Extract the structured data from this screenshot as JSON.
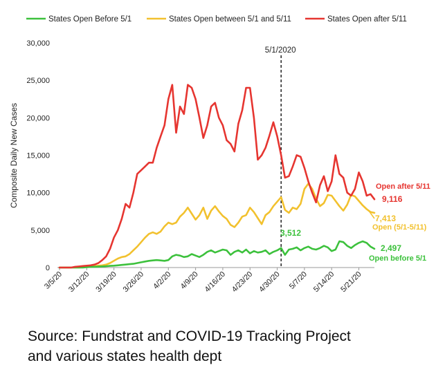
{
  "chart_data": {
    "type": "line",
    "title": "",
    "xlabel": "",
    "ylabel": "Composite Daily New Cases",
    "ylim": [
      0,
      30000
    ],
    "yticks": [
      0,
      5000,
      10000,
      15000,
      20000,
      25000,
      30000
    ],
    "ytick_labels": [
      "0",
      "5,000",
      "10,000",
      "15,000",
      "20,000",
      "25,000",
      "30,000"
    ],
    "xticks_day_index": [
      0,
      7,
      14,
      21,
      28,
      35,
      42,
      49,
      56,
      63,
      70,
      77
    ],
    "xtick_labels": [
      "3/5/20",
      "3/12/20",
      "3/19/20",
      "3/26/20",
      "4/2/20",
      "4/9/20",
      "4/16/20",
      "4/23/20",
      "4/30/20",
      "5/7/20",
      "5/14/20",
      "5/21/20"
    ],
    "x_start_date": "3/5/20",
    "x_num_days": 82,
    "marker": {
      "day_index": 57,
      "label": "5/1/2020"
    },
    "legend": {
      "position": "top"
    },
    "series": [
      {
        "name": "States Open Before 5/1",
        "color": "#3cc13c",
        "values": [
          0,
          0,
          0,
          0,
          0,
          0,
          0,
          50,
          80,
          100,
          120,
          150,
          180,
          220,
          250,
          300,
          350,
          400,
          450,
          500,
          600,
          700,
          800,
          900,
          950,
          1000,
          950,
          900,
          1000,
          1500,
          1700,
          1600,
          1400,
          1500,
          1800,
          1600,
          1400,
          1700,
          2100,
          2300,
          2000,
          2200,
          2400,
          2300,
          1700,
          2100,
          2300,
          2000,
          2400,
          1900,
          2200,
          2000,
          2100,
          2300,
          1800,
          2100,
          2300,
          2600,
          1700,
          2400,
          2500,
          2700,
          2300,
          2600,
          2800,
          2500,
          2400,
          2600,
          2900,
          2700,
          2200,
          2400,
          3512,
          3400,
          2900,
          2600,
          3000,
          3300,
          3500,
          3300,
          2800,
          2497
        ]
      },
      {
        "name": "States Open between 5/1 and 5/11",
        "color": "#f2c12e",
        "values": [
          0,
          0,
          0,
          0,
          0,
          0,
          50,
          100,
          150,
          200,
          250,
          300,
          400,
          600,
          900,
          1200,
          1400,
          1500,
          1800,
          2300,
          2800,
          3400,
          4000,
          4500,
          4700,
          4500,
          4800,
          5500,
          6000,
          5800,
          6000,
          6800,
          7300,
          8000,
          7200,
          6400,
          7000,
          8000,
          6500,
          7600,
          8200,
          7500,
          6900,
          6500,
          5700,
          5400,
          6000,
          6800,
          7000,
          8000,
          7400,
          6600,
          5800,
          7000,
          7400,
          8200,
          8800,
          9400,
          7700,
          7300,
          8000,
          7800,
          8500,
          10500,
          11200,
          10500,
          9200,
          8200,
          8600,
          9700,
          9600,
          8900,
          8200,
          7600,
          8400,
          9700,
          9500,
          8900,
          8300,
          7800,
          7413,
          7300
        ]
      },
      {
        "name": "States Open after 5/11",
        "color": "#e63530",
        "values": [
          0,
          0,
          0,
          0,
          100,
          150,
          200,
          250,
          300,
          400,
          600,
          1000,
          1500,
          2500,
          4000,
          5000,
          6500,
          8500,
          8000,
          10000,
          12500,
          13000,
          13500,
          14000,
          14000,
          16000,
          17500,
          19000,
          22500,
          24400,
          18000,
          21500,
          20500,
          24400,
          24000,
          22500,
          20000,
          17300,
          19000,
          21500,
          22000,
          20000,
          19000,
          17000,
          16500,
          15500,
          19200,
          21000,
          24000,
          24000,
          20000,
          14400,
          15000,
          16000,
          17600,
          19400,
          17500,
          15000,
          12000,
          12200,
          13500,
          15000,
          14800,
          13300,
          11500,
          10000,
          8700,
          11000,
          12200,
          10200,
          11500,
          15000,
          12500,
          12000,
          10000,
          9600,
          10500,
          12700,
          11500,
          9600,
          9800,
          9116
        ]
      }
    ],
    "annotations": [
      {
        "text": "3,512",
        "color": "#3cc13c"
      },
      {
        "text": "Open after 5/11",
        "color": "#e63530"
      },
      {
        "text": "9,116",
        "color": "#e63530"
      },
      {
        "text": "7,413",
        "color": "#f2c12e"
      },
      {
        "text": "Open (5/1-5/11)",
        "color": "#f2c12e"
      },
      {
        "text": "2,497",
        "color": "#3cc13c"
      },
      {
        "text": "Open before 5/1",
        "color": "#3cc13c"
      }
    ]
  },
  "source": {
    "line1": "Source: Fundstrat and COVID-19 Tracking Project",
    "line2": "and various states health dept"
  }
}
